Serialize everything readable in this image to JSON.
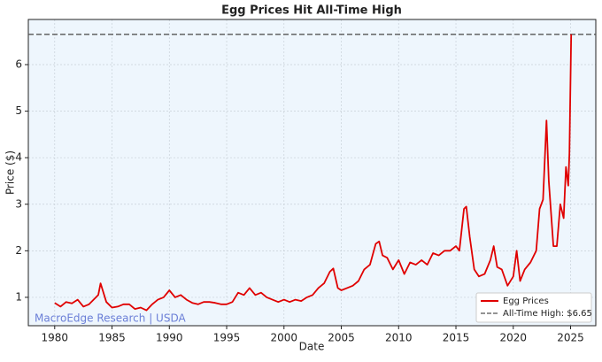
{
  "chart_data": {
    "type": "line",
    "title": "Egg Prices Hit All-Time High",
    "xlabel": "Date",
    "ylabel": "Price ($)",
    "x": [
      1980,
      1980.5,
      1981,
      1981.5,
      1982,
      1982.5,
      1983,
      1983.8,
      1984,
      1984.5,
      1985,
      1985.5,
      1986,
      1986.5,
      1987,
      1987.5,
      1988,
      1988.5,
      1989,
      1989.5,
      1990,
      1990.5,
      1991,
      1991.5,
      1992,
      1992.5,
      1993,
      1993.5,
      1994,
      1994.5,
      1995,
      1995.5,
      1996,
      1996.5,
      1997,
      1997.5,
      1998,
      1998.5,
      1999,
      1999.5,
      2000,
      2000.5,
      2001,
      2001.5,
      2002,
      2002.5,
      2003,
      2003.5,
      2004,
      2004.3,
      2004.7,
      2005,
      2005.5,
      2006,
      2006.5,
      2007,
      2007.5,
      2008,
      2008.3,
      2008.6,
      2009,
      2009.5,
      2010,
      2010.5,
      2011,
      2011.5,
      2012,
      2012.5,
      2013,
      2013.5,
      2014,
      2014.5,
      2015,
      2015.3,
      2015.7,
      2015.9,
      2016.2,
      2016.6,
      2017,
      2017.5,
      2018,
      2018.3,
      2018.6,
      2019,
      2019.5,
      2020,
      2020.3,
      2020.6,
      2021,
      2021.5,
      2022,
      2022.3,
      2022.6,
      2022.9,
      2023.1,
      2023.5,
      2023.8,
      2024.1,
      2024.4,
      2024.6,
      2024.8,
      2024.9,
      2025.05
    ],
    "series": [
      {
        "name": "Egg Prices",
        "color": "#e00000",
        "values": [
          0.88,
          0.8,
          0.9,
          0.87,
          0.95,
          0.8,
          0.85,
          1.05,
          1.3,
          0.9,
          0.78,
          0.8,
          0.85,
          0.85,
          0.75,
          0.78,
          0.72,
          0.85,
          0.95,
          1.0,
          1.15,
          1.0,
          1.05,
          0.95,
          0.88,
          0.85,
          0.9,
          0.9,
          0.88,
          0.85,
          0.85,
          0.9,
          1.1,
          1.05,
          1.2,
          1.05,
          1.1,
          1.0,
          0.95,
          0.9,
          0.95,
          0.9,
          0.95,
          0.92,
          1.0,
          1.05,
          1.2,
          1.3,
          1.55,
          1.62,
          1.2,
          1.15,
          1.2,
          1.25,
          1.35,
          1.6,
          1.7,
          2.15,
          2.2,
          1.9,
          1.85,
          1.6,
          1.8,
          1.5,
          1.75,
          1.7,
          1.8,
          1.7,
          1.95,
          1.9,
          2.0,
          2.0,
          2.1,
          2.0,
          2.9,
          2.95,
          2.3,
          1.6,
          1.45,
          1.5,
          1.8,
          2.1,
          1.65,
          1.6,
          1.25,
          1.45,
          2.0,
          1.35,
          1.6,
          1.75,
          2.0,
          2.9,
          3.1,
          4.8,
          3.5,
          2.1,
          2.1,
          3.0,
          2.7,
          3.8,
          3.4,
          4.1,
          6.65
        ]
      }
    ],
    "reference_line": {
      "name": "All-Time High: $6.65",
      "value": 6.65,
      "color": "#555555"
    },
    "annotation": "MacroEdge Research | USDA",
    "xlim": [
      1977.7,
      2027.2
    ],
    "xticks": [
      1980,
      1985,
      1990,
      1995,
      2000,
      2005,
      2010,
      2015,
      2020,
      2025
    ],
    "ylim": [
      0.39,
      6.97
    ],
    "yticks": [
      1,
      2,
      3,
      4,
      5,
      6
    ],
    "grid": true,
    "legend": "lower right"
  }
}
